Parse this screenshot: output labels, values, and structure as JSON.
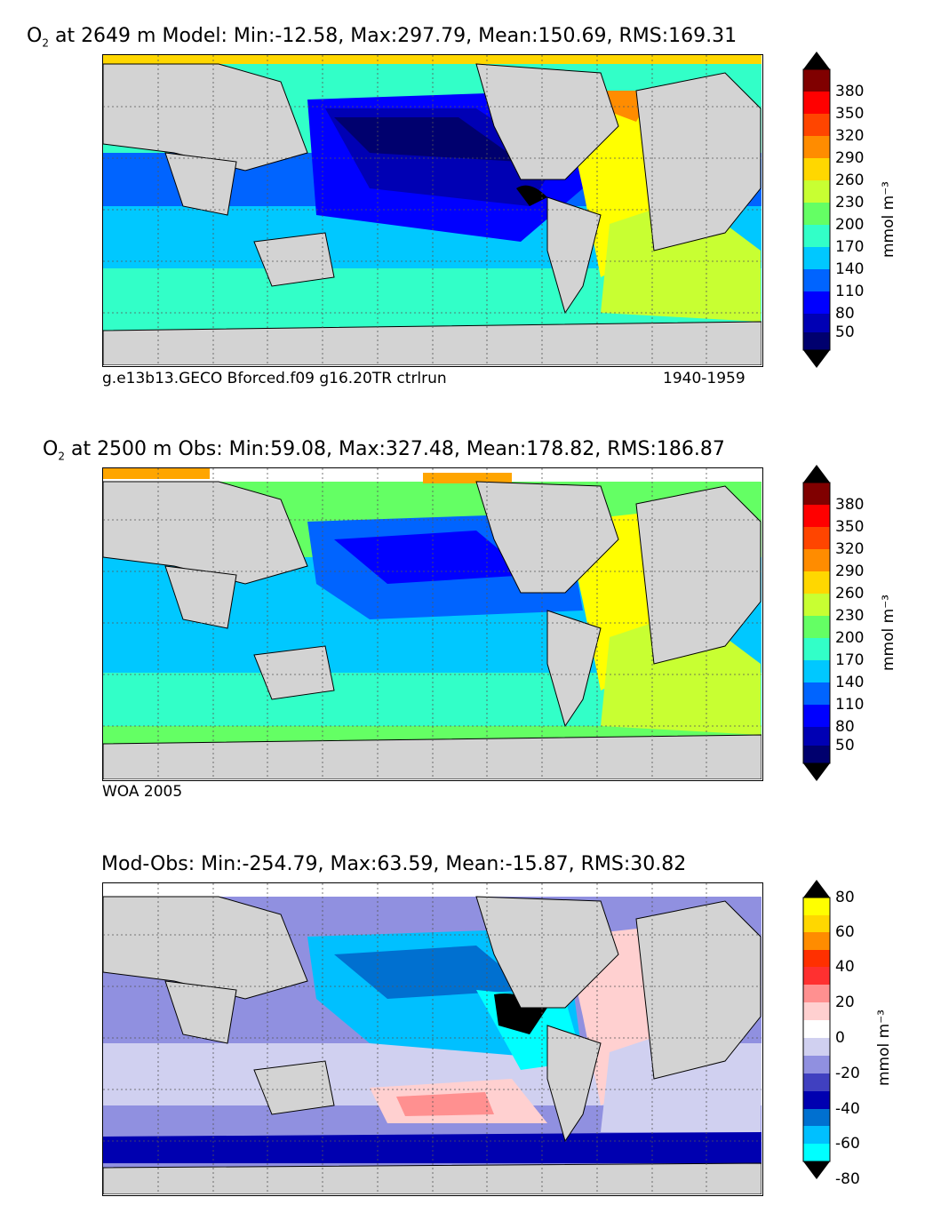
{
  "panels": [
    {
      "title_prefix": "O",
      "title_sub": "2",
      "title_rest": " at 2649 m Model: Min:-12.58, Max:297.79, Mean:150.69, RMS:169.31",
      "caption_left": "g.e13b13.GECO Bforced.f09 g16.20TR ctrlrun",
      "caption_right": "1940-1959",
      "colorbar_ticks": [
        "380",
        "350",
        "320",
        "290",
        "260",
        "230",
        "200",
        "170",
        "140",
        "110",
        "80",
        "50"
      ],
      "colorbar_unit": "mmol m⁻³"
    },
    {
      "title_prefix": "O",
      "title_sub": "2",
      "title_rest": " at 2500 m Obs: Min:59.08, Max:327.48, Mean:178.82, RMS:186.87",
      "caption_left": "WOA 2005",
      "caption_right": "",
      "colorbar_ticks": [
        "380",
        "350",
        "320",
        "290",
        "260",
        "230",
        "200",
        "170",
        "140",
        "110",
        "80",
        "50"
      ],
      "colorbar_unit": "mmol m⁻³"
    },
    {
      "title_prefix": "",
      "title_sub": "",
      "title_rest": "Mod-Obs: Min:-254.79, Max:63.59, Mean:-15.87, RMS:30.82",
      "caption_left": "",
      "caption_right": "",
      "colorbar_ticks": [
        "80",
        "60",
        "40",
        "20",
        "0",
        "-20",
        "-40",
        "-60",
        "-80"
      ],
      "colorbar_unit": "mmol m⁻³"
    }
  ],
  "colors": {
    "land": "#d3d3d3",
    "no_data": "#ffffff",
    "o2_scale": [
      "#00006e",
      "#0000b4",
      "#0000ff",
      "#0064ff",
      "#00c8ff",
      "#32ffc8",
      "#64ff64",
      "#c8ff32",
      "#ffff00",
      "#ffd700",
      "#ff8c00",
      "#ff4500",
      "#ff0000",
      "#800000"
    ],
    "diff_scale": [
      "#00ffff",
      "#00c0ff",
      "#0070d0",
      "#0000b0",
      "#4040c0",
      "#9090e0",
      "#d0d0f0",
      "#ffd0d0",
      "#ff9090",
      "#ff3030",
      "#ff3000",
      "#ff8c00",
      "#ffff00"
    ]
  }
}
